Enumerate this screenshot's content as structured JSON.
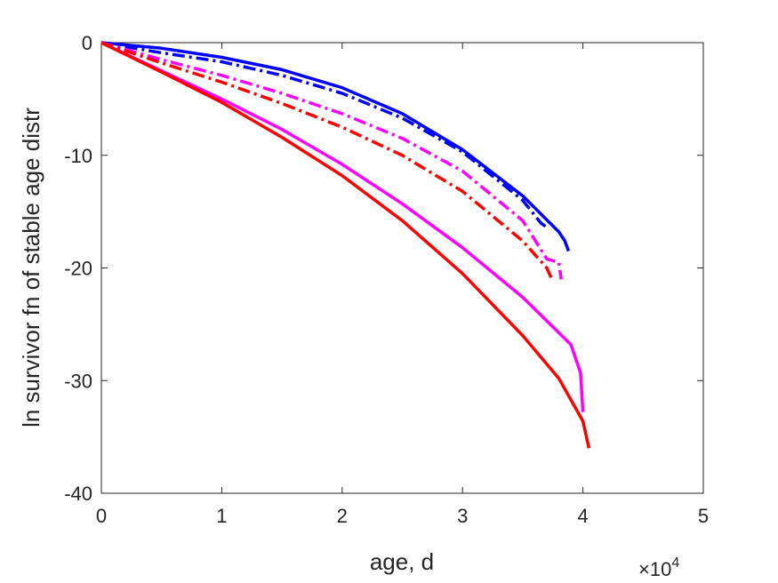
{
  "chart_data": {
    "type": "line",
    "xlabel": "age, d",
    "ylabel": "ln survivor fn of stable age distr",
    "x_multiplier_base": "×10",
    "x_multiplier_exp": "4",
    "xlim": [
      0,
      5
    ],
    "ylim": [
      -40,
      0
    ],
    "x_ticks": [
      "0",
      "1",
      "2",
      "3",
      "4",
      "5"
    ],
    "y_ticks": [
      "0",
      "-10",
      "-20",
      "-30",
      "-40"
    ],
    "grid": false,
    "x_unit_note": "x values in units of 10^4 days",
    "series": [
      {
        "color": "#0000ff",
        "style": "solid",
        "x": [
          0,
          0.5,
          1.0,
          1.5,
          2.0,
          2.5,
          3.0,
          3.5,
          3.8,
          3.85,
          3.88
        ],
        "y": [
          0,
          -0.5,
          -1.3,
          -2.4,
          -4.0,
          -6.3,
          -9.5,
          -13.6,
          -16.8,
          -17.6,
          -18.5
        ]
      },
      {
        "color": "#0000ff",
        "style": "dashdot",
        "x": [
          0,
          0.5,
          1.0,
          1.5,
          2.0,
          2.5,
          3.0,
          3.5,
          3.65,
          3.7
        ],
        "y": [
          0,
          -0.9,
          -1.7,
          -2.9,
          -4.5,
          -6.7,
          -9.7,
          -14.0,
          -16.0,
          -16.4
        ]
      },
      {
        "color": "#ff00ff",
        "style": "dashdot",
        "x": [
          0,
          0.5,
          1.0,
          1.5,
          2.0,
          2.5,
          3.0,
          3.5,
          3.7,
          3.8,
          3.82
        ],
        "y": [
          0,
          -1.5,
          -2.9,
          -4.5,
          -6.3,
          -8.5,
          -11.4,
          -15.8,
          -19.2,
          -19.5,
          -21.0
        ]
      },
      {
        "color": "#ff0000",
        "style": "dashdot",
        "x": [
          0,
          0.5,
          1.0,
          1.5,
          2.0,
          2.5,
          3.0,
          3.5,
          3.7,
          3.75
        ],
        "y": [
          0,
          -1.8,
          -3.5,
          -5.4,
          -7.5,
          -10.0,
          -13.2,
          -17.6,
          -20.0,
          -21.2
        ]
      },
      {
        "color": "#ff00ff",
        "style": "solid",
        "x": [
          0,
          0.5,
          1.0,
          1.5,
          2.0,
          2.5,
          3.0,
          3.5,
          3.9,
          3.98,
          4.0
        ],
        "y": [
          0,
          -2.5,
          -5.0,
          -7.7,
          -10.8,
          -14.3,
          -18.2,
          -22.6,
          -26.8,
          -29.3,
          -32.8
        ]
      },
      {
        "color": "#ff0000",
        "style": "solid",
        "x": [
          0,
          0.5,
          1.0,
          1.5,
          2.0,
          2.5,
          3.0,
          3.5,
          3.8,
          4.0,
          4.05
        ],
        "y": [
          0,
          -2.6,
          -5.3,
          -8.4,
          -11.8,
          -15.8,
          -20.5,
          -26.0,
          -29.8,
          -33.6,
          -36.0
        ]
      }
    ]
  }
}
